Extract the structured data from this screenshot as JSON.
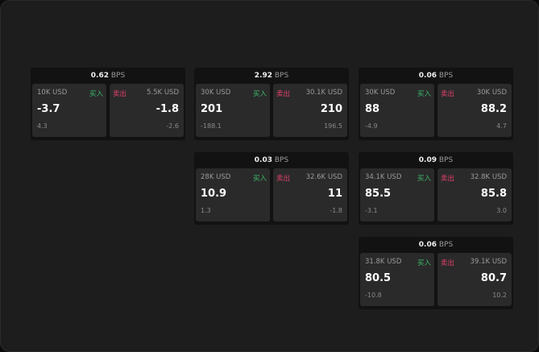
{
  "cards": [
    {
      "bps": "0.62",
      "unit": "BPS",
      "buy": {
        "size": "10K USD",
        "label": "买入",
        "price": "-3.7",
        "change": "4.3"
      },
      "sell": {
        "size": "5.5K USD",
        "label": "卖出",
        "price": "-1.8",
        "change": "-2.6"
      }
    },
    {
      "bps": "2.92",
      "unit": "BPS",
      "buy": {
        "size": "30K USD",
        "label": "买入",
        "price": "201",
        "change": "-188.1"
      },
      "sell": {
        "size": "30.1K USD",
        "label": "卖出",
        "price": "210",
        "change": "196.5"
      }
    },
    {
      "bps": "0.06",
      "unit": "BPS",
      "buy": {
        "size": "30K USD",
        "label": "买入",
        "price": "88",
        "change": "-4.9"
      },
      "sell": {
        "size": "30K USD",
        "label": "卖出",
        "price": "88.2",
        "change": "4.7"
      }
    },
    {
      "bps": "0.03",
      "unit": "BPS",
      "buy": {
        "size": "28K USD",
        "label": "买入",
        "price": "10.9",
        "change": "1.3"
      },
      "sell": {
        "size": "32.6K USD",
        "label": "卖出",
        "price": "11",
        "change": "-1.8"
      }
    },
    {
      "bps": "0.09",
      "unit": "BPS",
      "buy": {
        "size": "34.1K USD",
        "label": "买入",
        "price": "85.5",
        "change": "-3.1"
      },
      "sell": {
        "size": "32.8K USD",
        "label": "卖出",
        "price": "85.8",
        "change": "3.0"
      }
    },
    {
      "bps": "0.06",
      "unit": "BPS",
      "buy": {
        "size": "31.8K USD",
        "label": "买入",
        "price": "80.5",
        "change": "-10.8"
      },
      "sell": {
        "size": "39.1K USD",
        "label": "卖出",
        "price": "80.7",
        "change": "10.2"
      }
    }
  ],
  "colors": {
    "buy": "#3cb96a",
    "sell": "#e0406a"
  }
}
